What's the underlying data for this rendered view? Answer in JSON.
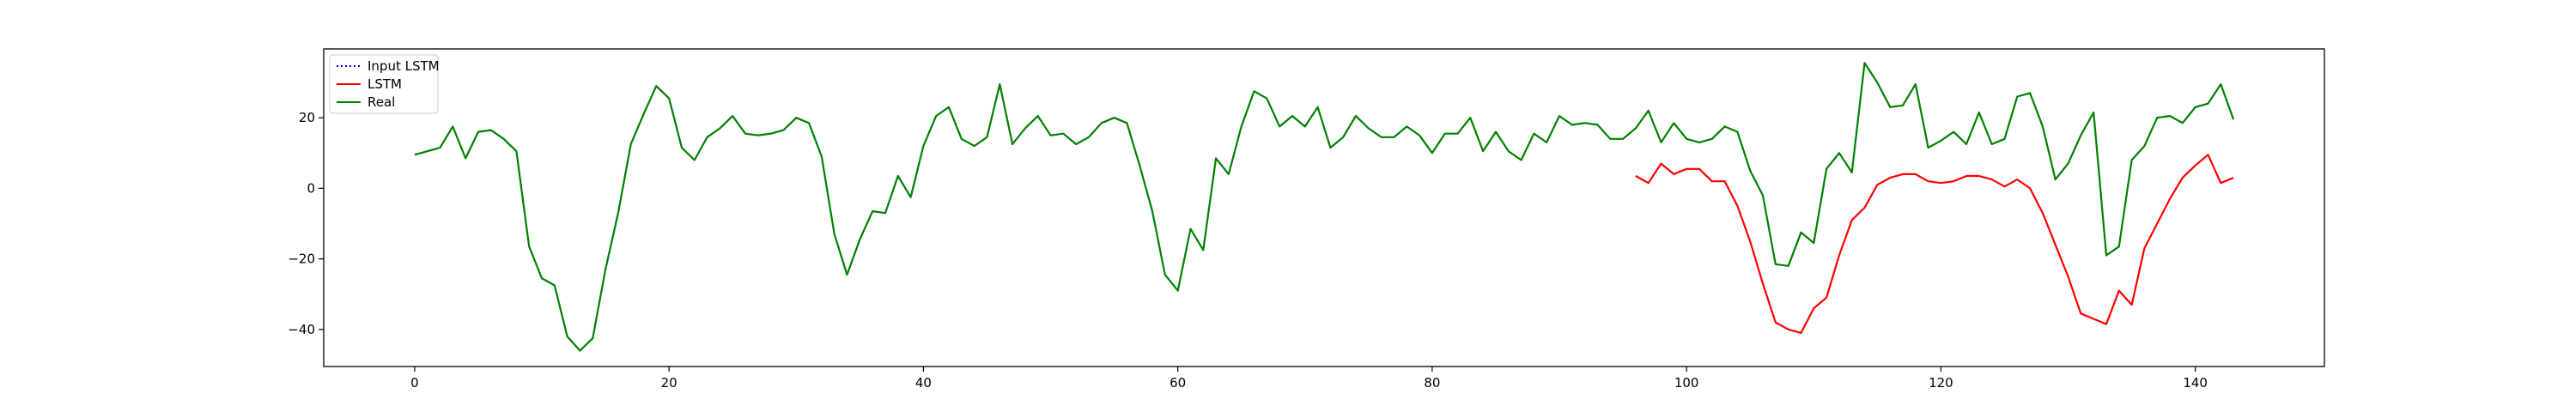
{
  "chart_data": {
    "type": "line",
    "title": "",
    "xlabel": "",
    "ylabel": "",
    "xlim": [
      -7.15,
      150.15
    ],
    "ylim": [
      -50.5,
      39.5
    ],
    "x_ticks": [
      0,
      20,
      40,
      60,
      80,
      100,
      120,
      140
    ],
    "y_ticks": [
      -40,
      -20,
      0,
      20
    ],
    "grid": false,
    "legend_position": "top-left",
    "series": [
      {
        "name": "Input LSTM",
        "color": "#0000ff",
        "style": "dotted",
        "x": [],
        "y": []
      },
      {
        "name": "LSTM",
        "color": "#ff0000",
        "style": "solid",
        "x": [
          96,
          97,
          98,
          99,
          100,
          101,
          102,
          103,
          104,
          105,
          106,
          107,
          108,
          109,
          110,
          111,
          112,
          113,
          114,
          115,
          116,
          117,
          118,
          119,
          120,
          121,
          122,
          123,
          124,
          125,
          126,
          127,
          128,
          129,
          130,
          131,
          132,
          133,
          134,
          135,
          136,
          137,
          138,
          139,
          140,
          141,
          142,
          143
        ],
        "y": [
          3.5,
          1.5,
          7,
          4,
          5.5,
          5.5,
          2,
          2,
          -5,
          -15,
          -27,
          -38,
          -40,
          -41,
          -34,
          -31,
          -19,
          -9,
          -5.5,
          1,
          3,
          4,
          4,
          2,
          1.5,
          2,
          3.5,
          3.5,
          2.5,
          0.5,
          2.5,
          0,
          -7,
          -16,
          -25,
          -35.5,
          -37,
          -38.5,
          -29,
          -33,
          -17,
          -10,
          -3,
          3,
          6.5,
          9.5,
          1.5,
          3
        ]
      },
      {
        "name": "Real",
        "color": "#008000",
        "style": "solid",
        "x": [
          0,
          1,
          2,
          3,
          4,
          5,
          6,
          7,
          8,
          9,
          10,
          11,
          12,
          13,
          14,
          15,
          16,
          17,
          18,
          19,
          20,
          21,
          22,
          23,
          24,
          25,
          26,
          27,
          28,
          29,
          30,
          31,
          32,
          33,
          34,
          35,
          36,
          37,
          38,
          39,
          40,
          41,
          42,
          43,
          44,
          45,
          46,
          47,
          48,
          49,
          50,
          51,
          52,
          53,
          54,
          55,
          56,
          57,
          58,
          59,
          60,
          61,
          62,
          63,
          64,
          65,
          66,
          67,
          68,
          69,
          70,
          71,
          72,
          73,
          74,
          75,
          76,
          77,
          78,
          79,
          80,
          81,
          82,
          83,
          84,
          85,
          86,
          87,
          88,
          89,
          90,
          91,
          92,
          93,
          94,
          95,
          96,
          97,
          98,
          99,
          100,
          101,
          102,
          103,
          104,
          105,
          106,
          107,
          108,
          109,
          110,
          111,
          112,
          113,
          114,
          115,
          116,
          117,
          118,
          119,
          120,
          121,
          122,
          123,
          124,
          125,
          126,
          127,
          128,
          129,
          130,
          131,
          132,
          133,
          134,
          135,
          136,
          137,
          138,
          139,
          140,
          141,
          142,
          143
        ],
        "y": [
          9.5,
          10.5,
          11.5,
          17.5,
          8.5,
          16,
          16.5,
          14,
          10.5,
          -16.5,
          -25.5,
          -27.5,
          -42,
          -46,
          -42.5,
          -23,
          -7,
          12.5,
          21,
          29,
          25.5,
          11.5,
          8,
          14.5,
          17,
          20.5,
          15.5,
          15,
          15.5,
          16.5,
          20,
          18.5,
          9,
          -13,
          -24.5,
          -14.5,
          -6.5,
          -7,
          3.5,
          -2.5,
          12,
          20.5,
          23,
          14,
          12,
          14.5,
          29.5,
          12.5,
          17,
          20.5,
          15,
          15.5,
          12.5,
          14.5,
          18.5,
          20,
          18.5,
          6.5,
          -6.5,
          -24.5,
          -29,
          -11.5,
          -17.5,
          8.5,
          4,
          17.5,
          27.5,
          25.5,
          17.5,
          20.5,
          17.5,
          23,
          11.5,
          14.5,
          20.5,
          17,
          14.5,
          14.5,
          17.5,
          15,
          10,
          15.5,
          15.5,
          20,
          10.5,
          16,
          10.5,
          8,
          15.5,
          13,
          20.5,
          18,
          18.5,
          18,
          14,
          14,
          17,
          22,
          13,
          18.5,
          14,
          13,
          14,
          17.5,
          16,
          5,
          -2,
          -21.5,
          -22,
          -12.5,
          -15.5,
          5.5,
          10,
          4.5,
          35.5,
          30,
          23,
          23.5,
          29.5,
          11.5,
          13.5,
          16,
          12.5,
          21.5,
          12.5,
          14,
          26,
          27,
          17.5,
          2.5,
          7,
          15,
          21.5,
          -19,
          -16.5,
          8,
          12,
          20,
          20.5,
          18.5,
          23,
          24,
          29.5,
          19.5
        ]
      }
    ]
  }
}
